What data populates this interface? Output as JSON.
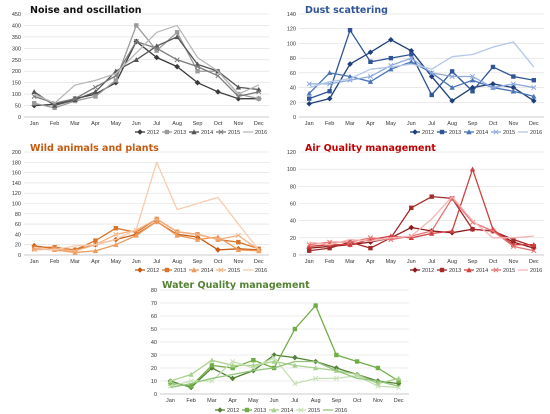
{
  "chart_data": [
    {
      "id": "noise",
      "type": "line",
      "title": "Noise and oscillation",
      "title_color": "#111111",
      "categories": [
        "Jan",
        "Feb",
        "Mar",
        "Apr",
        "May",
        "Jun",
        "Jul",
        "Aug",
        "Sep",
        "Oct",
        "Nov",
        "Dec"
      ],
      "ylim": [
        0,
        450
      ],
      "yticks": [
        0,
        50,
        100,
        150,
        200,
        250,
        300,
        350,
        400,
        450
      ],
      "legend_position": "bottom-right",
      "series": [
        {
          "name": "2012",
          "color": "#3a3a3a",
          "values": [
            50,
            55,
            80,
            100,
            150,
            330,
            260,
            220,
            150,
            110,
            80,
            80
          ]
        },
        {
          "name": "2013",
          "color": "#9a9a9a",
          "values": [
            60,
            40,
            70,
            90,
            160,
            400,
            290,
            370,
            200,
            200,
            100,
            80
          ]
        },
        {
          "name": "2014",
          "color": "#555555",
          "values": [
            110,
            50,
            75,
            110,
            200,
            250,
            310,
            350,
            230,
            200,
            130,
            120
          ]
        },
        {
          "name": "2015",
          "color": "#7a7a7a",
          "values": [
            90,
            60,
            80,
            130,
            180,
            330,
            300,
            250,
            220,
            180,
            90,
            110
          ]
        },
        {
          "name": "2016",
          "color": "#b8b8b8",
          "values": [
            100,
            60,
            140,
            160,
            190,
            280,
            370,
            400,
            260,
            200,
            100,
            140
          ]
        }
      ]
    },
    {
      "id": "dust",
      "type": "line",
      "title": "Dust scattering",
      "title_color": "#2f5597",
      "categories": [
        "Jan",
        "Feb",
        "Mar",
        "Apr",
        "May",
        "Jun",
        "Jul",
        "Aug",
        "Sep",
        "Oct",
        "Nov",
        "Dec"
      ],
      "ylim": [
        0,
        140
      ],
      "yticks": [
        0,
        20,
        40,
        60,
        80,
        100,
        120,
        140
      ],
      "legend_position": "bottom-right",
      "series": [
        {
          "name": "2012",
          "color": "#1f3f7a",
          "values": [
            18,
            25,
            72,
            88,
            105,
            90,
            55,
            22,
            40,
            45,
            40,
            22
          ]
        },
        {
          "name": "2013",
          "color": "#2f5597",
          "values": [
            25,
            35,
            118,
            75,
            80,
            85,
            30,
            62,
            35,
            68,
            55,
            50
          ]
        },
        {
          "name": "2014",
          "color": "#4a74b8",
          "values": [
            32,
            60,
            55,
            48,
            65,
            75,
            60,
            40,
            50,
            40,
            35,
            28
          ]
        },
        {
          "name": "2015",
          "color": "#8faadc",
          "values": [
            45,
            45,
            50,
            55,
            70,
            80,
            60,
            55,
            55,
            40,
            45,
            40
          ]
        },
        {
          "name": "2016",
          "color": "#b4c7e7",
          "values": [
            40,
            48,
            52,
            65,
            68,
            72,
            65,
            82,
            85,
            95,
            102,
            68
          ]
        }
      ]
    },
    {
      "id": "wild",
      "type": "line",
      "title": "Wild animals and plants",
      "title_color": "#c55a11",
      "categories": [
        "Jan",
        "Feb",
        "Mar",
        "Apr",
        "May",
        "Jun",
        "Jul",
        "Aug",
        "Sep",
        "Oct",
        "Nov",
        "Dec"
      ],
      "ylim": [
        0,
        200
      ],
      "yticks": [
        0,
        20,
        40,
        60,
        80,
        100,
        120,
        140,
        160,
        180,
        200
      ],
      "legend_position": "bottom-right",
      "series": [
        {
          "name": "2012",
          "color": "#c55a11",
          "values": [
            18,
            12,
            10,
            20,
            30,
            40,
            65,
            40,
            35,
            10,
            12,
            10
          ]
        },
        {
          "name": "2013",
          "color": "#d9752a",
          "values": [
            15,
            15,
            10,
            28,
            52,
            44,
            70,
            45,
            40,
            30,
            25,
            12
          ]
        },
        {
          "name": "2014",
          "color": "#ed9a5c",
          "values": [
            12,
            10,
            5,
            8,
            20,
            38,
            65,
            38,
            30,
            35,
            10,
            8
          ]
        },
        {
          "name": "2015",
          "color": "#f4b183",
          "values": [
            10,
            12,
            8,
            20,
            40,
            48,
            70,
            45,
            40,
            30,
            38,
            10
          ]
        },
        {
          "name": "2016",
          "color": "#f8cbad",
          "values": [
            15,
            10,
            18,
            20,
            30,
            50,
            180,
            88,
            100,
            112,
            60,
            10
          ]
        }
      ]
    },
    {
      "id": "air",
      "type": "line",
      "title": "Air Quality management",
      "title_color": "#c00000",
      "categories": [
        "Jan",
        "Feb",
        "Mar",
        "Apr",
        "May",
        "Jun",
        "Jul",
        "Aug",
        "Sep",
        "Oct",
        "Nov",
        "Dec"
      ],
      "ylim": [
        0,
        120
      ],
      "yticks": [
        0,
        20,
        40,
        60,
        80,
        100,
        120
      ],
      "legend_position": "bottom-right",
      "series": [
        {
          "name": "2012",
          "color": "#8b1a1a",
          "values": [
            8,
            10,
            12,
            15,
            20,
            32,
            28,
            26,
            30,
            28,
            15,
            8
          ]
        },
        {
          "name": "2013",
          "color": "#a52a2a",
          "values": [
            5,
            8,
            15,
            8,
            20,
            55,
            68,
            66,
            30,
            28,
            18,
            10
          ]
        },
        {
          "name": "2014",
          "color": "#d04040",
          "values": [
            10,
            12,
            12,
            18,
            22,
            20,
            25,
            28,
            100,
            30,
            12,
            12
          ]
        },
        {
          "name": "2015",
          "color": "#e57373",
          "values": [
            12,
            15,
            15,
            20,
            18,
            22,
            28,
            66,
            38,
            28,
            10,
            5
          ]
        },
        {
          "name": "2016",
          "color": "#f4b6b6",
          "values": [
            15,
            12,
            18,
            16,
            20,
            22,
            42,
            68,
            40,
            20,
            20,
            22
          ]
        }
      ]
    },
    {
      "id": "water",
      "type": "line",
      "title": "Water Quality management",
      "title_color": "#548235",
      "categories": [
        "Jan",
        "Feb",
        "Mar",
        "Apr",
        "May",
        "Jun",
        "Jul",
        "Aug",
        "Sep",
        "Oct",
        "Nov",
        "Dec"
      ],
      "ylim": [
        0,
        80
      ],
      "yticks": [
        0,
        10,
        20,
        30,
        40,
        50,
        60,
        70,
        80
      ],
      "legend_position": "bottom-center",
      "series": [
        {
          "name": "2012",
          "color": "#548235",
          "values": [
            10,
            5,
            20,
            12,
            18,
            30,
            28,
            25,
            20,
            15,
            10,
            8
          ]
        },
        {
          "name": "2013",
          "color": "#70ad47",
          "values": [
            8,
            6,
            22,
            20,
            26,
            20,
            50,
            68,
            30,
            25,
            20,
            10
          ]
        },
        {
          "name": "2014",
          "color": "#a9d18e",
          "values": [
            10,
            15,
            26,
            22,
            22,
            25,
            22,
            20,
            18,
            15,
            8,
            12
          ]
        },
        {
          "name": "2015",
          "color": "#c5e0b4",
          "values": [
            6,
            10,
            10,
            25,
            20,
            28,
            8,
            12,
            12,
            14,
            6,
            5
          ]
        },
        {
          "name": "2016",
          "color": "#92c47a",
          "values": [
            5,
            8,
            12,
            15,
            18,
            20,
            25,
            25,
            18,
            12,
            10,
            6
          ]
        }
      ]
    }
  ]
}
